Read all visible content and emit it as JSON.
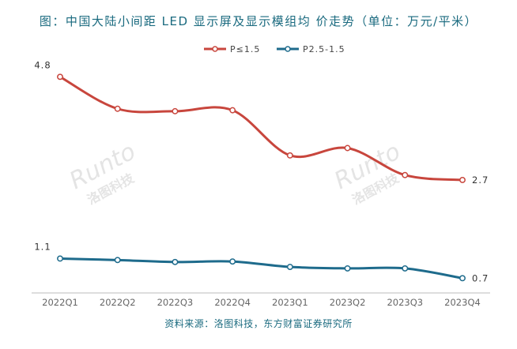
{
  "title": "图：中国大陆小间距 LED 显示屏及显示模组均 价走势（单位：万元/平米）",
  "source": "资料来源：洛图科技，东方财富证券研究所",
  "watermark": {
    "brand": "Runto",
    "sub": "洛图科技"
  },
  "chart_data": {
    "type": "line",
    "title": "图：中国大陆小间距 LED 显示屏及显示模组均 价走势（单位：万元/平米）",
    "categories": [
      "2022Q1",
      "2022Q2",
      "2022Q3",
      "2022Q4",
      "2023Q1",
      "2023Q2",
      "2023Q3",
      "2023Q4"
    ],
    "ylim": [
      0.4,
      5.4
    ],
    "grid": false,
    "legend": "top-center",
    "series": [
      {
        "name": "P≤1.5",
        "color": "#c8463d",
        "values": [
          4.8,
          4.15,
          4.1,
          4.12,
          3.2,
          3.35,
          2.8,
          2.7
        ],
        "labels": {
          "0": "4.8",
          "7": "2.7"
        }
      },
      {
        "name": "P2.5-1.5",
        "color": "#1e6b8c",
        "values": [
          1.1,
          1.07,
          1.03,
          1.04,
          0.93,
          0.9,
          0.9,
          0.7
        ],
        "labels": {
          "0": "1.1",
          "7": "0.7"
        }
      }
    ]
  }
}
